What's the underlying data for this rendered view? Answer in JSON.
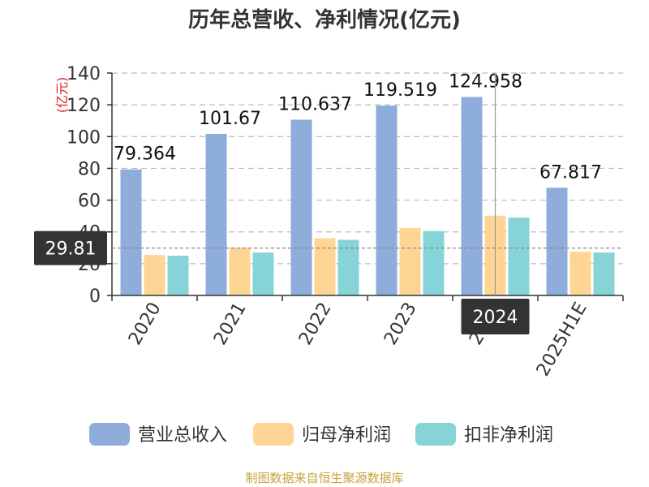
{
  "chart_data": {
    "type": "bar",
    "title": "历年总营收、净利情况(亿元)",
    "ylabel": "(亿元)",
    "ylim": [
      0,
      140
    ],
    "yticks": [
      0,
      20,
      40,
      60,
      80,
      100,
      120,
      140
    ],
    "grid": true,
    "legend_position": "bottom",
    "categories": [
      "2020",
      "2021",
      "2022",
      "2023",
      "2024",
      "2025H1E"
    ],
    "series": [
      {
        "name": "营业总收入",
        "color": "#8eaddb",
        "values": [
          79.364,
          101.67,
          110.637,
          119.519,
          124.958,
          67.817
        ]
      },
      {
        "name": "归母净利润",
        "color": "#ffd595",
        "values": [
          25.5,
          30.2,
          36.0,
          42.5,
          50.2,
          27.5
        ]
      },
      {
        "name": "扣非净利润",
        "color": "#86d4d8",
        "values": [
          25.0,
          27.0,
          35.0,
          40.5,
          49.0,
          27.0
        ]
      }
    ],
    "data_labels": [
      "79.364",
      "101.67",
      "110.637",
      "119.519",
      "124.958",
      "67.817"
    ],
    "tooltip": {
      "y_value": "29.81",
      "x_category": "2024"
    }
  },
  "source": "制图数据来自恒生聚源数据库"
}
